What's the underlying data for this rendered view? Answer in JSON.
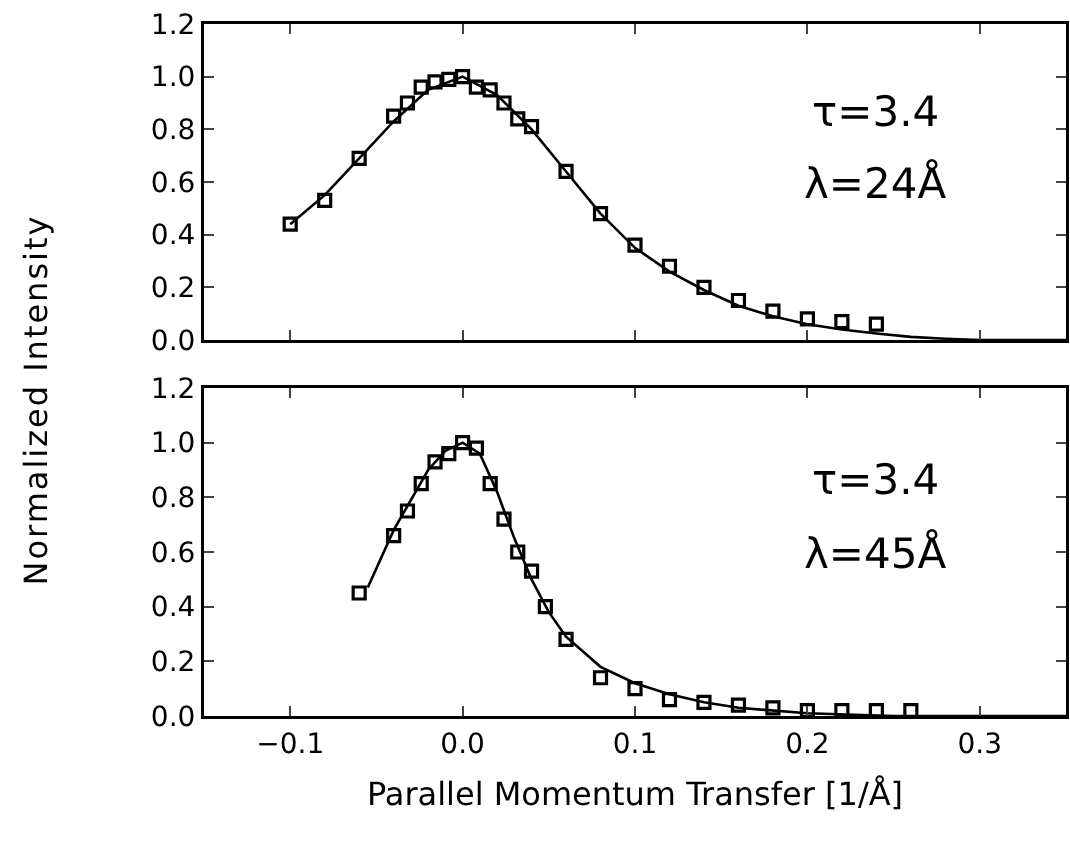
{
  "chart_data": [
    {
      "type": "scatter",
      "ylabel": "Normalized Intensity",
      "annotations": [
        "τ=3.4",
        "λ=24Å"
      ],
      "xlim": [
        -0.15,
        0.35
      ],
      "xticks": [
        -0.1,
        0.0,
        0.1,
        0.2,
        0.3
      ],
      "ylim": [
        0,
        1.2
      ],
      "yticks": [
        {
          "value": 0,
          "label": "0.0"
        },
        {
          "value": 0.2,
          "label": "0.2"
        },
        {
          "value": 0.4,
          "label": "0.4"
        },
        {
          "value": 0.6,
          "label": "0.6"
        },
        {
          "value": 0.8,
          "label": "0.8"
        },
        {
          "value": 1.0,
          "label": "1.0"
        },
        {
          "value": 1.2,
          "label": "1.2"
        }
      ],
      "tick_labels": "y",
      "grid": false,
      "series": [
        {
          "type": "scatter",
          "marker": "square",
          "color": "#000000",
          "x": [
            -0.1,
            -0.08,
            -0.06,
            -0.04,
            -0.032,
            -0.024,
            -0.016,
            -0.008,
            0,
            0.008,
            0.016,
            0.024,
            0.032,
            0.04,
            0.06,
            0.08,
            0.1,
            0.12,
            0.14,
            0.16,
            0.18,
            0.2,
            0.22,
            0.24
          ],
          "values": [
            0.44,
            0.53,
            0.69,
            0.85,
            0.9,
            0.96,
            0.98,
            0.99,
            1.0,
            0.96,
            0.95,
            0.9,
            0.84,
            0.81,
            0.64,
            0.48,
            0.36,
            0.28,
            0.2,
            0.15,
            0.11,
            0.08,
            0.07,
            0.06
          ]
        },
        {
          "type": "line",
          "marker": "none",
          "line_style": "solid",
          "color": "#000000",
          "x": [
            -0.1,
            -0.08,
            -0.06,
            -0.04,
            -0.02,
            0,
            0.02,
            0.04,
            0.06,
            0.08,
            0.1,
            0.12,
            0.14,
            0.16,
            0.18,
            0.2,
            0.22,
            0.24,
            0.26,
            0.28,
            0.3,
            0.35
          ],
          "values": [
            0.44,
            0.55,
            0.69,
            0.83,
            0.95,
            1.0,
            0.93,
            0.8,
            0.64,
            0.48,
            0.35,
            0.26,
            0.19,
            0.13,
            0.09,
            0.06,
            0.04,
            0.025,
            0.012,
            0.005,
            0.0,
            0.0
          ]
        }
      ]
    },
    {
      "type": "scatter",
      "xlabel": "Parallel Momentum Transfer [1/Å]",
      "annotations": [
        "τ=3.4",
        "λ=45Å"
      ],
      "xlim": [
        -0.15,
        0.35
      ],
      "xticks": [
        {
          "value": -0.1,
          "label": "−0.1"
        },
        {
          "value": 0,
          "label": "0.0"
        },
        0.1,
        0.2,
        0.3
      ],
      "ylim": [
        0,
        1.2
      ],
      "yticks": [
        {
          "value": 0,
          "label": "0.0"
        },
        {
          "value": 0.2,
          "label": "0.2"
        },
        {
          "value": 0.4,
          "label": "0.4"
        },
        {
          "value": 0.6,
          "label": "0.6"
        },
        {
          "value": 0.8,
          "label": "0.8"
        },
        {
          "value": 1.0,
          "label": "1.0"
        },
        {
          "value": 1.2,
          "label": "1.2"
        }
      ],
      "grid": false,
      "series": [
        {
          "type": "scatter",
          "marker": "square",
          "color": "#000000",
          "x": [
            -0.06,
            -0.04,
            -0.032,
            -0.024,
            -0.016,
            -0.008,
            0,
            0.008,
            0.016,
            0.024,
            0.032,
            0.04,
            0.048,
            0.06,
            0.08,
            0.1,
            0.12,
            0.14,
            0.16,
            0.18,
            0.2,
            0.22,
            0.24,
            0.26
          ],
          "values": [
            0.45,
            0.66,
            0.75,
            0.85,
            0.93,
            0.96,
            1.0,
            0.98,
            0.85,
            0.72,
            0.6,
            0.53,
            0.4,
            0.28,
            0.14,
            0.1,
            0.06,
            0.05,
            0.04,
            0.03,
            0.02,
            0.02,
            0.02,
            0.02
          ]
        },
        {
          "type": "line",
          "marker": "none",
          "line_style": "solid",
          "color": "#000000",
          "x": [
            -0.055,
            -0.04,
            -0.02,
            -0.01,
            0,
            0.01,
            0.02,
            0.03,
            0.04,
            0.05,
            0.06,
            0.08,
            0.1,
            0.12,
            0.14,
            0.16,
            0.2,
            0.25,
            0.35
          ],
          "values": [
            0.47,
            0.68,
            0.9,
            0.97,
            1.0,
            0.96,
            0.82,
            0.65,
            0.5,
            0.38,
            0.29,
            0.18,
            0.12,
            0.08,
            0.05,
            0.03,
            0.01,
            0.0,
            0.0
          ]
        }
      ]
    }
  ]
}
